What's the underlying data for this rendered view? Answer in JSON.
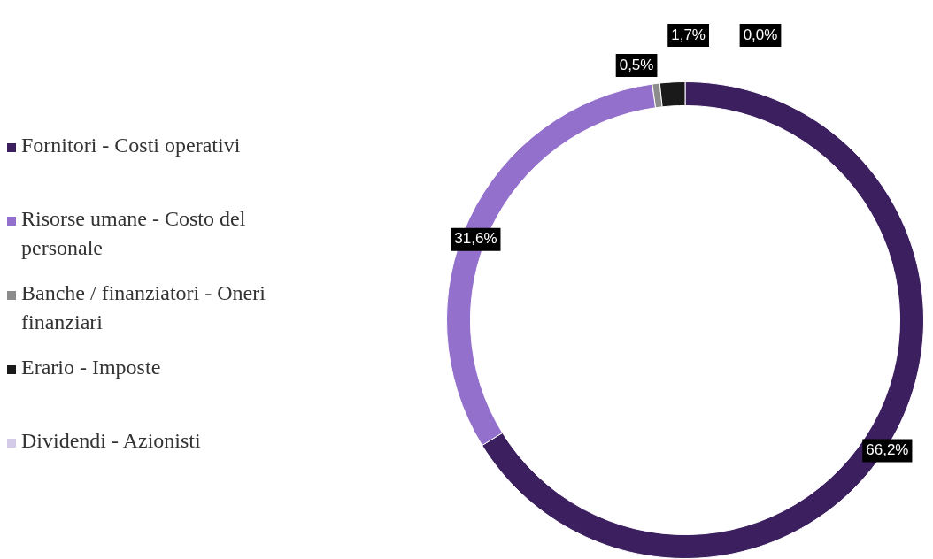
{
  "chart_data": {
    "type": "donut",
    "categories": [
      "Fornitori - Costi operativi",
      "Risorse umane - Costo del personale",
      "Banche / finanziatori - Oneri finanziari",
      "Erario - Imposte",
      "Dividendi - Azionisti"
    ],
    "values": [
      66.2,
      31.6,
      0.5,
      1.7,
      0.0
    ],
    "colors": [
      "#3b1f5e",
      "#9370cc",
      "#8c8c8c",
      "#1a1a1a",
      "#d4cbe8"
    ],
    "value_labels": [
      "66,2%",
      "31,6%",
      "0,5%",
      "1,7%",
      "0,0%"
    ],
    "legend": "left"
  }
}
